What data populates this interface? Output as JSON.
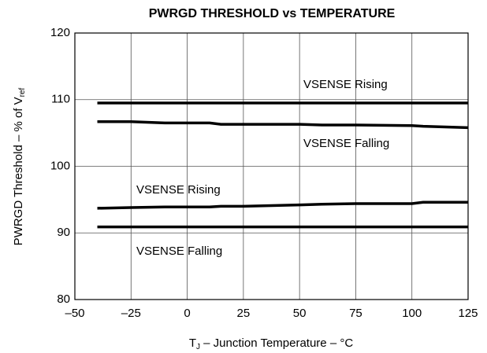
{
  "chart_data": {
    "type": "line",
    "title": "PWRGD THRESHOLD vs TEMPERATURE",
    "y_label": {
      "text": "PWRGD Threshold – % of V",
      "subscript": "ref"
    },
    "x_label": {
      "text": "T",
      "subscript": "J",
      "rest": " – Junction Temperature – °C"
    },
    "x": [
      -40,
      -25,
      -10,
      0,
      10,
      15,
      25,
      50,
      60,
      75,
      100,
      105,
      125
    ],
    "series": [
      {
        "name": "VSENSE Rising",
        "color": "#000000",
        "values": [
          109.5,
          109.5,
          109.5,
          109.5,
          109.5,
          109.5,
          109.5,
          109.5,
          109.5,
          109.5,
          109.5,
          109.5,
          109.5
        ]
      },
      {
        "name": "VSENSE Falling",
        "color": "#000000",
        "values": [
          106.7,
          106.7,
          106.5,
          106.5,
          106.5,
          106.3,
          106.3,
          106.3,
          106.2,
          106.2,
          106.1,
          106.0,
          105.8
        ]
      },
      {
        "name": "VSENSE Rising",
        "color": "#000000",
        "values": [
          93.7,
          93.8,
          93.9,
          93.9,
          93.9,
          94.0,
          94.0,
          94.2,
          94.3,
          94.4,
          94.4,
          94.6,
          94.6
        ]
      },
      {
        "name": "VSENSE Falling",
        "color": "#000000",
        "values": [
          90.9,
          90.9,
          90.9,
          90.9,
          90.9,
          90.9,
          90.9,
          90.9,
          90.9,
          90.9,
          90.9,
          90.9,
          90.9
        ]
      }
    ],
    "xlim": [
      -50,
      125
    ],
    "xticks": [
      {
        "value": -50,
        "label": "–50"
      },
      {
        "value": -25,
        "label": "–25"
      },
      0,
      25,
      50,
      75,
      100,
      125
    ],
    "ylim": [
      80,
      120
    ],
    "yticks": [
      80,
      90,
      100,
      110,
      120
    ],
    "grid": true
  }
}
